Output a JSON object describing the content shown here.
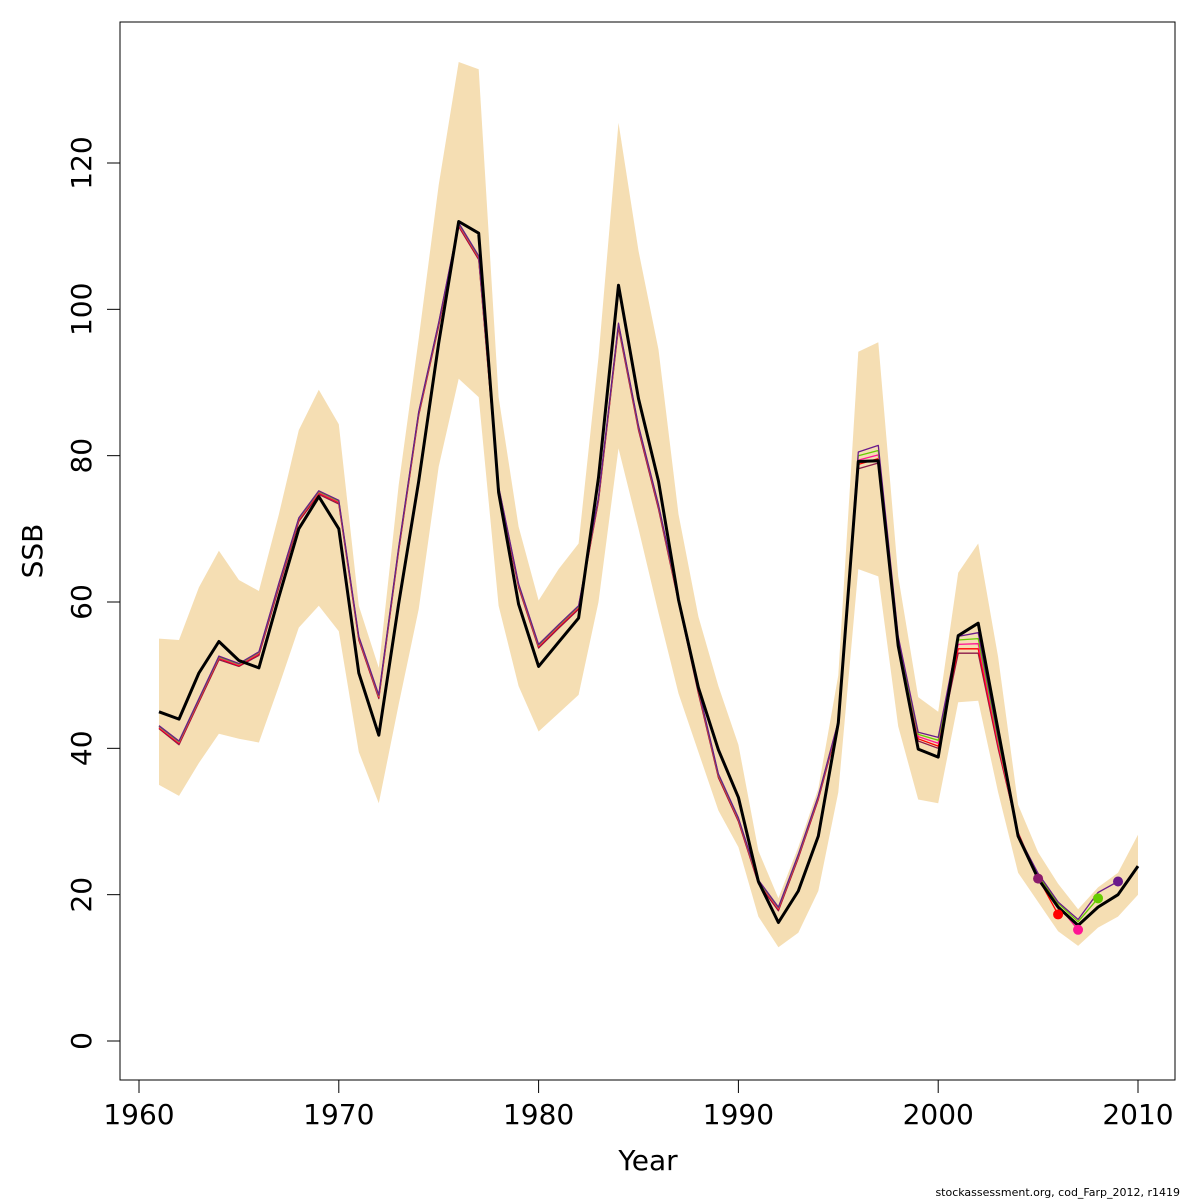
{
  "chart_data": {
    "type": "line",
    "xlabel": "Year",
    "ylabel": "SSB",
    "xlim": [
      1960,
      2010
    ],
    "ylim": [
      0,
      130
    ],
    "x_ticks": [
      1960,
      1970,
      1980,
      1990,
      2000,
      2010
    ],
    "y_ticks": [
      0,
      20,
      40,
      60,
      80,
      100,
      120
    ],
    "grid": false,
    "legend": "none",
    "footer": "stockassessment.org, cod_Farp_2012, r1419",
    "colors": {
      "band": "#f5deb3",
      "main_line": "#000000",
      "retro_line": "#e0105a"
    },
    "confidence_band": {
      "x": [
        1961,
        1962,
        1963,
        1964,
        1965,
        1966,
        1967,
        1968,
        1969,
        1970,
        1971,
        1972,
        1973,
        1974,
        1975,
        1976,
        1977,
        1978,
        1979,
        1980,
        1981,
        1982,
        1983,
        1984,
        1985,
        1986,
        1987,
        1988,
        1989,
        1990,
        1991,
        1992,
        1993,
        1994,
        1995,
        1996,
        1997,
        1998,
        1999,
        2000,
        2001,
        2002,
        2003,
        2004,
        2005,
        2006,
        2007,
        2008,
        2009,
        2010
      ],
      "lower": [
        35,
        33.5,
        38,
        42,
        41.3,
        40.8,
        48.5,
        56.5,
        59.5,
        56,
        39.5,
        32.5,
        46,
        59,
        78.5,
        90.5,
        88,
        59.5,
        48.5,
        42.3,
        44.8,
        47.3,
        60,
        81,
        70,
        58.5,
        47.5,
        39.5,
        31.5,
        26.5,
        17,
        12.8,
        14.8,
        20.5,
        34,
        64.5,
        63.5,
        43,
        33,
        32.5,
        46.3,
        46.5,
        34,
        23,
        19,
        15,
        13,
        15.5,
        17,
        20
      ],
      "upper": [
        55,
        54.8,
        62,
        67,
        63,
        61.5,
        72,
        83.5,
        89,
        84.3,
        59.5,
        51,
        76,
        96,
        117,
        133.8,
        132.8,
        88,
        70.3,
        60.2,
        64.5,
        68,
        93.5,
        125.5,
        108,
        94.5,
        72,
        58,
        48.5,
        40.5,
        26,
        19.5,
        26.5,
        34.5,
        50,
        94.2,
        95.5,
        63.5,
        47,
        45,
        64,
        68,
        52.5,
        32.3,
        25.8,
        21.5,
        18,
        21,
        23,
        28.2
      ]
    },
    "series": [
      {
        "x": [
          1961,
          1962,
          1963,
          1964,
          1965,
          1966,
          1967,
          1968,
          1969,
          1970,
          1971,
          1972,
          1973,
          1974,
          1975,
          1976,
          1977,
          1978,
          1979,
          1980,
          1981,
          1982,
          1983,
          1984,
          1985,
          1986,
          1987,
          1988,
          1989,
          1990,
          1991,
          1992,
          1993,
          1994,
          1995,
          1996,
          1997,
          1998,
          1999,
          2000,
          2001,
          2002,
          2003,
          2004,
          2005,
          2006,
          2007,
          2008,
          2009,
          2010
        ],
        "values": [
          45,
          44,
          50.3,
          54.6,
          52,
          51,
          60.7,
          70,
          74.4,
          70,
          50.3,
          41.8,
          59.8,
          76.5,
          95.4,
          112,
          110.4,
          75,
          59.7,
          51.2,
          54.5,
          57.8,
          77,
          103.3,
          87.8,
          76.5,
          60.3,
          48.3,
          39.8,
          33.3,
          21.8,
          16.2,
          20.5,
          28,
          43.5,
          79.2,
          79.3,
          54,
          39.9,
          38.8,
          55.4,
          57.1,
          42.5,
          28,
          22.2,
          18.3,
          15.8,
          18.3,
          20,
          23.9
        ]
      },
      {
        "x": [
          1961,
          1962,
          1963,
          1964,
          1965,
          1966,
          1967,
          1968,
          1969,
          1970,
          1971,
          1972,
          1973,
          1974,
          1975,
          1976,
          1977,
          1978,
          1979,
          1980,
          1981,
          1982,
          1983,
          1984,
          1985,
          1986,
          1987,
          1988,
          1989,
          1990,
          1991,
          1992,
          1993,
          1994,
          1995,
          1996,
          1997,
          1998,
          1999,
          2000,
          2001,
          2002,
          2003,
          2004,
          2005
        ],
        "values": [
          42.7,
          40.5,
          46.3,
          52.1,
          51.2,
          52.7,
          62,
          71,
          74.7,
          73.4,
          54.8,
          46.8,
          67,
          85.5,
          97.7,
          111.3,
          106.8,
          75.3,
          62,
          53.7,
          56.4,
          59,
          73.8,
          97.5,
          83.5,
          72.7,
          60,
          47.5,
          36,
          30,
          21.5,
          17.8,
          25,
          33,
          43.2,
          78.2,
          79,
          53.9,
          41,
          40,
          53,
          53,
          40,
          28.5,
          22.2
        ]
      },
      {
        "x": [
          1961,
          1962,
          1963,
          1964,
          1965,
          1966,
          1967,
          1968,
          1969,
          1970,
          1971,
          1972,
          1973,
          1974,
          1975,
          1976,
          1977,
          1978,
          1979,
          1980,
          1981,
          1982,
          1983,
          1984,
          1985,
          1986,
          1987,
          1988,
          1989,
          1990,
          1991,
          1992,
          1993,
          1994,
          1995,
          1996,
          1997,
          1998,
          1999,
          2000,
          2001,
          2002,
          2003,
          2004,
          2005,
          2006
        ],
        "values": [
          42.8,
          40.7,
          46.5,
          52.3,
          51.3,
          52.9,
          62.3,
          71.2,
          74.9,
          73.6,
          55,
          47,
          67.2,
          85.7,
          97.9,
          111.5,
          107,
          75.5,
          62.2,
          53.9,
          56.6,
          59.2,
          74,
          97.8,
          83.8,
          73,
          60.2,
          47.8,
          36.2,
          30.2,
          21.7,
          18,
          25.2,
          33.2,
          43.4,
          78.8,
          79.6,
          54.3,
          41.3,
          40.3,
          53.6,
          53.6,
          40.4,
          28.4,
          22.3,
          17.3
        ]
      },
      {
        "x": [
          1961,
          1962,
          1963,
          1964,
          1965,
          1966,
          1967,
          1968,
          1969,
          1970,
          1971,
          1972,
          1973,
          1974,
          1975,
          1976,
          1977,
          1978,
          1979,
          1980,
          1981,
          1982,
          1983,
          1984,
          1985,
          1986,
          1987,
          1988,
          1989,
          1990,
          1991,
          1992,
          1993,
          1994,
          1995,
          1996,
          1997,
          1998,
          1999,
          2000,
          2001,
          2002,
          2003,
          2004,
          2005,
          2006,
          2007
        ],
        "values": [
          42.9,
          40.8,
          46.6,
          52.4,
          51.4,
          53,
          62.4,
          71.3,
          75,
          73.7,
          55.1,
          47.1,
          67.3,
          85.8,
          98,
          111.6,
          107.1,
          75.6,
          62.3,
          54,
          56.7,
          59.3,
          74.1,
          97.9,
          83.9,
          73.1,
          60.3,
          47.9,
          36.3,
          30.3,
          21.8,
          18.1,
          25.3,
          33.3,
          43.5,
          79.4,
          80.1,
          54.6,
          41.6,
          40.7,
          54.2,
          54.3,
          40.8,
          28.3,
          22.5,
          18.5,
          15.2
        ]
      },
      {
        "x": [
          1961,
          1962,
          1963,
          1964,
          1965,
          1966,
          1967,
          1968,
          1969,
          1970,
          1971,
          1972,
          1973,
          1974,
          1975,
          1976,
          1977,
          1978,
          1979,
          1980,
          1981,
          1982,
          1983,
          1984,
          1985,
          1986,
          1987,
          1988,
          1989,
          1990,
          1991,
          1992,
          1993,
          1994,
          1995,
          1996,
          1997,
          1998,
          1999,
          2000,
          2001,
          2002,
          2003,
          2004,
          2005,
          2006,
          2007,
          2008
        ],
        "values": [
          43,
          40.9,
          46.7,
          52.5,
          51.5,
          53.1,
          62.5,
          71.4,
          75.1,
          73.8,
          55.2,
          47.2,
          67.4,
          85.9,
          98.1,
          111.7,
          107.2,
          75.7,
          62.4,
          54.1,
          56.8,
          59.4,
          74.2,
          98,
          84,
          73.2,
          60.4,
          48,
          36.4,
          30.4,
          21.9,
          18.2,
          25.4,
          33.4,
          43.6,
          80,
          80.7,
          54.9,
          41.9,
          41.1,
          54.8,
          55,
          41.2,
          28.2,
          22.7,
          18.8,
          16.3,
          19.5
        ]
      },
      {
        "x": [
          1961,
          1962,
          1963,
          1964,
          1965,
          1966,
          1967,
          1968,
          1969,
          1970,
          1971,
          1972,
          1973,
          1974,
          1975,
          1976,
          1977,
          1978,
          1979,
          1980,
          1981,
          1982,
          1983,
          1984,
          1985,
          1986,
          1987,
          1988,
          1989,
          1990,
          1991,
          1992,
          1993,
          1994,
          1995,
          1996,
          1997,
          1998,
          1999,
          2000,
          2001,
          2002,
          2003,
          2004,
          2005,
          2006,
          2007,
          2008,
          2009
        ],
        "values": [
          43.1,
          41,
          46.8,
          52.6,
          51.6,
          53.2,
          62.6,
          71.5,
          75.2,
          73.9,
          55.3,
          47.3,
          67.5,
          86,
          98.2,
          111.8,
          107.3,
          75.8,
          62.5,
          54.2,
          56.9,
          59.5,
          74.3,
          98.1,
          84.1,
          73.3,
          60.5,
          48.1,
          36.5,
          30.5,
          22,
          18.3,
          25.5,
          33.5,
          43.7,
          80.5,
          81.4,
          55.3,
          42.2,
          41.5,
          55.3,
          55.8,
          41.6,
          28.1,
          22.9,
          19,
          16.6,
          20.3,
          21.8
        ]
      }
    ],
    "retro_endpoints": [
      {
        "x": 2005,
        "y": 22.2,
        "color": "#8b1a6b"
      },
      {
        "x": 2006,
        "y": 17.3,
        "color": "#ff0000"
      },
      {
        "x": 2007,
        "y": 15.2,
        "color": "#ff1493"
      },
      {
        "x": 2008,
        "y": 19.5,
        "color": "#66cc00"
      },
      {
        "x": 2009,
        "y": 21.8,
        "color": "#6a1a8b"
      }
    ],
    "series_colors": [
      "#000000",
      "#8b1a4a",
      "#ff0000",
      "#ff1493",
      "#66cc00",
      "#6a1a8b"
    ]
  }
}
